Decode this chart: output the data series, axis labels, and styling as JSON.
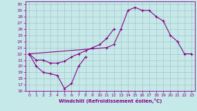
{
  "xlabel": "Windchill (Refroidissement éolien,°C)",
  "xlim": [
    -0.5,
    23.5
  ],
  "ylim": [
    16,
    30.5
  ],
  "xticks": [
    0,
    1,
    2,
    3,
    4,
    5,
    6,
    7,
    8,
    9,
    10,
    11,
    12,
    13,
    14,
    15,
    16,
    17,
    18,
    19,
    20,
    21,
    22,
    23
  ],
  "yticks": [
    16,
    17,
    18,
    19,
    20,
    21,
    22,
    23,
    24,
    25,
    26,
    27,
    28,
    29,
    30
  ],
  "bg_color": "#c5e8e8",
  "line_color": "#880088",
  "grid_color": "#a0c0c0",
  "line1_x": [
    0,
    1,
    2,
    3,
    4,
    5,
    6,
    7,
    8
  ],
  "line1_y": [
    22,
    20,
    19,
    18.8,
    18.5,
    16.4,
    17.2,
    20,
    21.5
  ],
  "line2_x": [
    0,
    11,
    12,
    13,
    14,
    15,
    16,
    17,
    18,
    19,
    20,
    21,
    22,
    23
  ],
  "line2_y": [
    22,
    23,
    23.5,
    26,
    29,
    29.5,
    29,
    29,
    28,
    27.3,
    25,
    24,
    22,
    22
  ],
  "line3_x": [
    0,
    1,
    2,
    3,
    4,
    5,
    6,
    7,
    8,
    9,
    10,
    11,
    12
  ],
  "line3_y": [
    22,
    21.0,
    21.0,
    20.5,
    20.5,
    20.8,
    21.5,
    22.0,
    22.5,
    23.0,
    23.5,
    24.5,
    26
  ]
}
